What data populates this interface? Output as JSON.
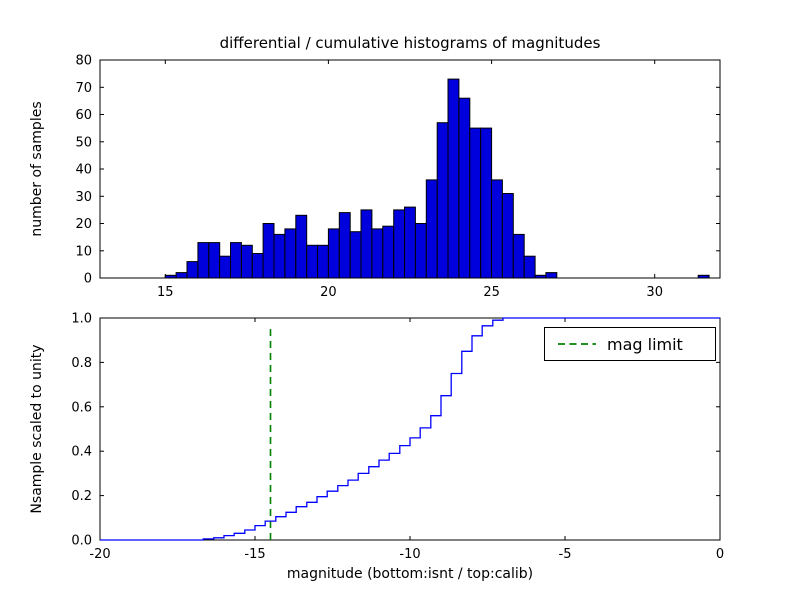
{
  "figure": {
    "background": "#ffffff"
  },
  "chart_data": [
    {
      "type": "bar",
      "title": "differential / cumulative histograms of magnitudes",
      "ylabel": "number of samples",
      "xlim": [
        13,
        32
      ],
      "ylim": [
        0,
        80
      ],
      "xticks": [
        15,
        20,
        25,
        30
      ],
      "xticklabels": [
        "15",
        "20",
        "25",
        "30"
      ],
      "yticks": [
        0,
        10,
        20,
        30,
        40,
        50,
        60,
        70,
        80
      ],
      "yticklabels": [
        "0",
        "10",
        "20",
        "30",
        "40",
        "50",
        "60",
        "70",
        "80"
      ],
      "bin_start": 15.0,
      "bin_width": 0.3333,
      "values": [
        1,
        2,
        6,
        13,
        13,
        8,
        13,
        12,
        9,
        20,
        16,
        18,
        23,
        12,
        12,
        18,
        24,
        17,
        25,
        18,
        19,
        25,
        26,
        20,
        36,
        57,
        73,
        66,
        55,
        55,
        36,
        31,
        16,
        8,
        1,
        2,
        0,
        0,
        0,
        0,
        0,
        0,
        0,
        0,
        0,
        0,
        0,
        0,
        0,
        1
      ],
      "bar_color": "#0000dd",
      "bar_edge_color": "#000000",
      "grid": false
    },
    {
      "type": "line",
      "step": true,
      "ylabel": "Nsample scaled to unity",
      "xlabel": "magnitude (bottom:isnt / top:calib)",
      "xlim": [
        -20,
        0
      ],
      "ylim": [
        0,
        1
      ],
      "xticks": [
        -20,
        -15,
        -10,
        -5,
        0
      ],
      "xticklabels": [
        "-20",
        "-15",
        "-10",
        "-5",
        "0"
      ],
      "yticks": [
        0,
        0.2,
        0.4,
        0.6,
        0.8,
        1
      ],
      "yticklabels": [
        "0.0",
        "0.2",
        "0.4",
        "0.6",
        "0.8",
        "1.0"
      ],
      "line_color": "#0000ff",
      "points": [
        [
          -20,
          0
        ],
        [
          -17,
          0
        ],
        [
          -16.67,
          0.005
        ],
        [
          -16.33,
          0.01
        ],
        [
          -16,
          0.02
        ],
        [
          -15.67,
          0.03
        ],
        [
          -15.33,
          0.045
        ],
        [
          -15,
          0.065
        ],
        [
          -14.67,
          0.085
        ],
        [
          -14.33,
          0.105
        ],
        [
          -14,
          0.125
        ],
        [
          -13.67,
          0.15
        ],
        [
          -13.33,
          0.17
        ],
        [
          -13,
          0.195
        ],
        [
          -12.67,
          0.22
        ],
        [
          -12.33,
          0.245
        ],
        [
          -12,
          0.27
        ],
        [
          -11.67,
          0.3
        ],
        [
          -11.33,
          0.33
        ],
        [
          -11,
          0.36
        ],
        [
          -10.67,
          0.39
        ],
        [
          -10.33,
          0.425
        ],
        [
          -10,
          0.46
        ],
        [
          -9.67,
          0.505
        ],
        [
          -9.33,
          0.56
        ],
        [
          -9,
          0.65
        ],
        [
          -8.67,
          0.75
        ],
        [
          -8.33,
          0.85
        ],
        [
          -8,
          0.92
        ],
        [
          -7.67,
          0.965
        ],
        [
          -7.33,
          0.99
        ],
        [
          -7,
          1
        ],
        [
          0,
          1
        ]
      ],
      "mag_limit": {
        "x": -14.5,
        "y0": 0,
        "y1": 0.95,
        "color": "#008000",
        "label": "mag limit"
      },
      "legend": {
        "label": "mag limit",
        "position": "upper right"
      },
      "grid": false
    }
  ]
}
